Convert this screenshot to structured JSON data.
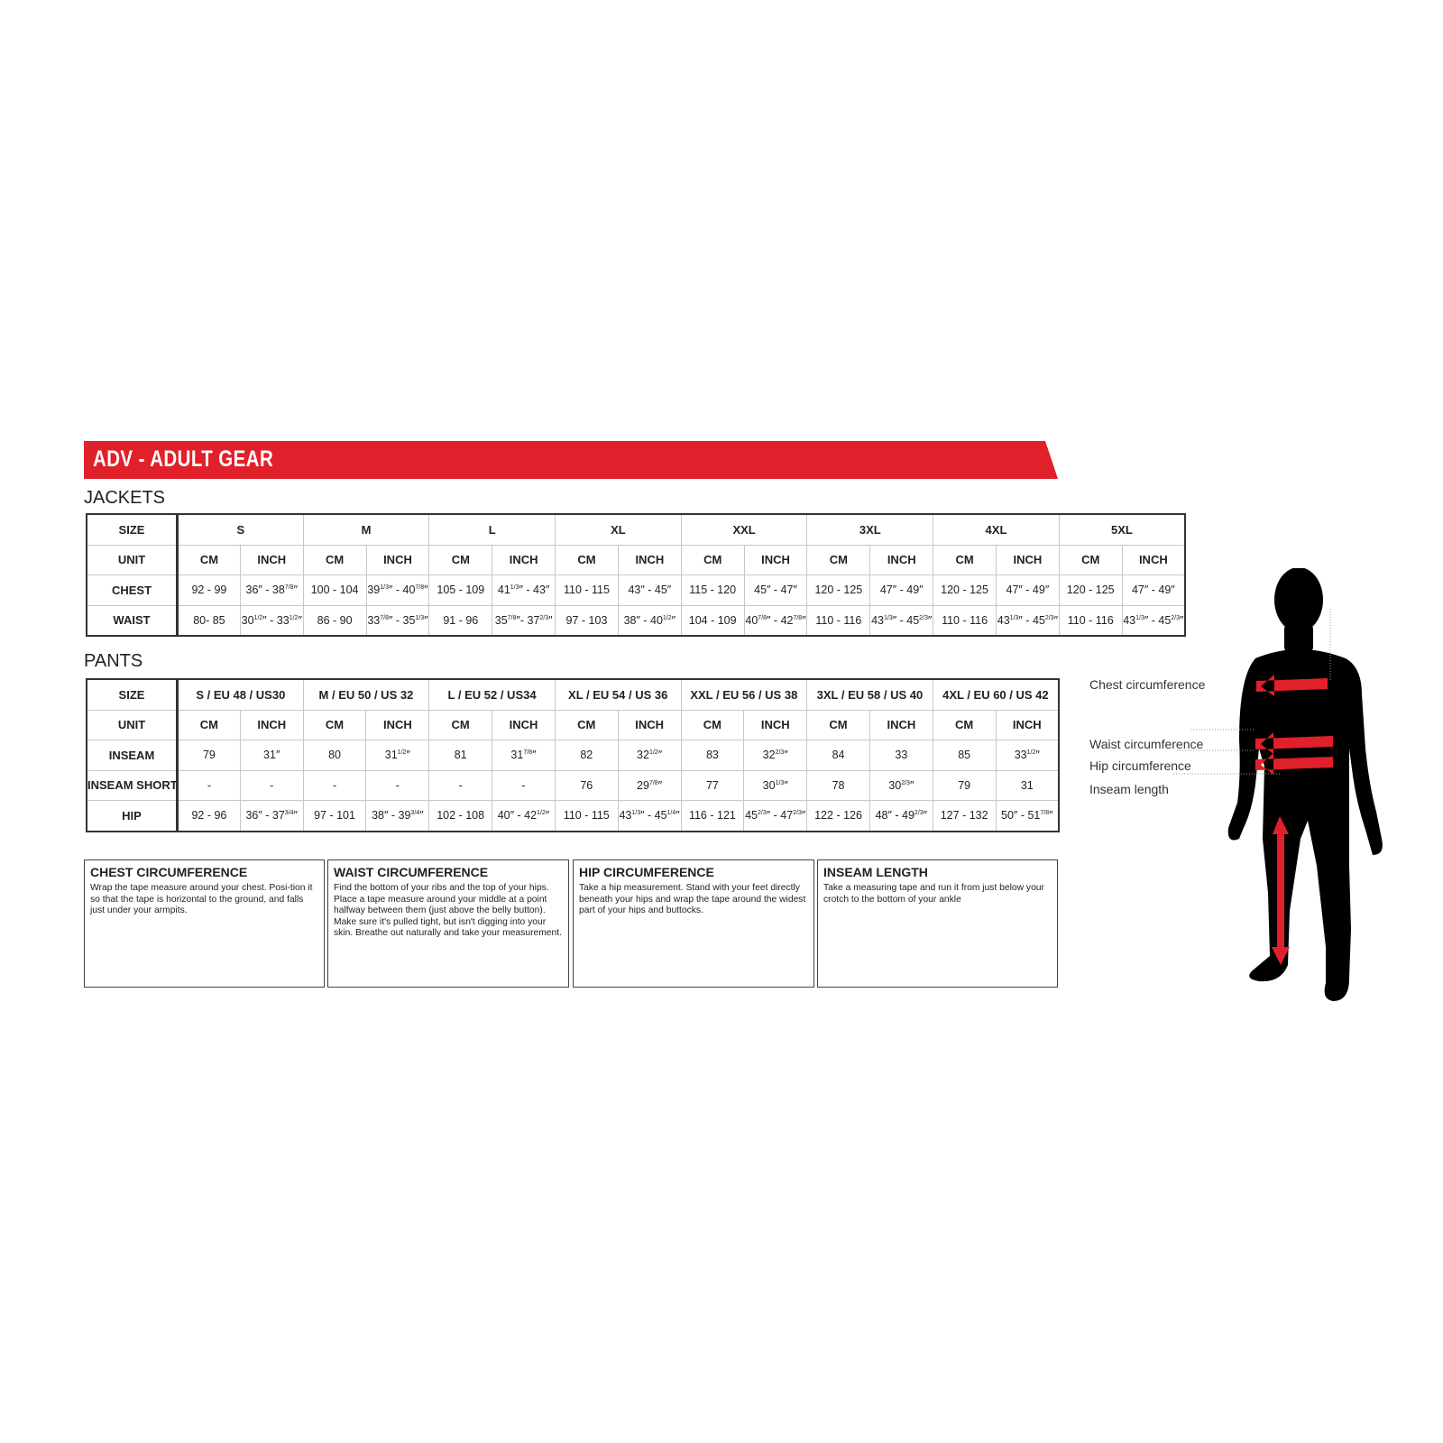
{
  "header": {
    "title": "ADV - ADULT GEAR",
    "accent_color": "#e0202a"
  },
  "jackets": {
    "label": "JACKETS",
    "size_label": "SIZE",
    "unit_label": "UNIT",
    "units": [
      "CM",
      "INCH"
    ],
    "sizes": [
      "S",
      "M",
      "L",
      "XL",
      "XXL",
      "3XL",
      "4XL",
      "5XL"
    ],
    "rows": [
      {
        "label": "CHEST",
        "values": [
          "92 - 99",
          "36″ - 38{7/8}″",
          "100 - 104",
          "39{1/3}″ - 40{7/8}″",
          "105 - 109",
          "41{1/3}″ - 43″",
          "110 - 115",
          "43″ - 45″",
          "115 - 120",
          "45″ - 47″",
          "120 - 125",
          "47″ - 49″",
          "120 - 125",
          "47″ - 49″",
          "120 - 125",
          "47″ - 49″"
        ]
      },
      {
        "label": "WAIST",
        "values": [
          "80- 85",
          "30{1/2}″ - 33{1/2}″",
          "86 - 90",
          "33{7/8}″ - 35{1/3}″",
          "91 - 96",
          "35{7/8}″- 37{2/3}″",
          "97 - 103",
          "38″ - 40{1/2}″",
          "104 - 109",
          "40{7/8}″ - 42{7/8}″",
          "110 - 116",
          "43{1/3}″ - 45{2/3}″",
          "110 - 116",
          "43{1/3}″ - 45{2/3}″",
          "110 - 116",
          "43{1/3}″ - 45{2/3}″"
        ]
      }
    ]
  },
  "pants": {
    "label": "PANTS",
    "size_label": "SIZE",
    "unit_label": "UNIT",
    "units": [
      "CM",
      "INCH"
    ],
    "sizes": [
      "S / EU 48 / US30",
      "M / EU 50 / US 32",
      "L / EU 52 / US34",
      "XL / EU 54 / US 36",
      "XXL / EU 56 / US 38",
      "3XL / EU 58 / US 40",
      "4XL / EU 60 / US 42"
    ],
    "rows": [
      {
        "label": "INSEAM",
        "values": [
          "79",
          "31″",
          "80",
          "31{1/2}″",
          "81",
          "31{7/8}″",
          "82",
          "32{1/2}″",
          "83",
          "32{2/3}″",
          "84",
          "33",
          "85",
          "33{1/2}″"
        ]
      },
      {
        "label": "INSEAM SHORT",
        "values": [
          "-",
          "-",
          "-",
          "-",
          "-",
          "-",
          "76",
          "29{7/8}″",
          "77",
          "30{1/3}″",
          "78",
          "30{2/3}″",
          "79",
          "31"
        ]
      },
      {
        "label": "HIP",
        "values": [
          "92 - 96",
          "36″ - 37{3/4}″",
          "97 - 101",
          "38″ - 39{3/4}″",
          "102 - 108",
          "40″ - 42{1/2}″",
          "110 - 115",
          "43{1/3}″ - 45{1/4}″",
          "116 - 121",
          "45{2/3}″ - 47{2/3}″",
          "122 - 126",
          "48″ - 49{2/3}″",
          "127 - 132",
          "50″ - 51{7/8}″"
        ]
      }
    ]
  },
  "guides": [
    {
      "title": "CHEST CIRCUMFERENCE",
      "text": "Wrap the tape measure around your chest. Posi-tion it so that the tape is horizontal to the ground, and falls just under your armpits."
    },
    {
      "title": "WAIST CIRCUMFERENCE",
      "text": "Find the bottom of your ribs and the top of your hips. Place a tape measure around your middle at a point halfway between them (just above the belly button). Make sure it's pulled tight, but isn't digging into your skin. Breathe out naturally and take your measurement."
    },
    {
      "title": "HIP CIRCUMFERENCE",
      "text": "Take a hip measurement. Stand with your feet directly beneath your hips and wrap the tape around the widest part of your hips and buttocks."
    },
    {
      "title": "INSEAM LENGTH",
      "text": "Take a measuring tape and run it from just below your crotch to the bottom of your ankle"
    }
  ],
  "figure": {
    "labels": [
      "Chest circumference",
      "Waist circumference",
      "Hip circumference",
      "Inseam length"
    ]
  }
}
